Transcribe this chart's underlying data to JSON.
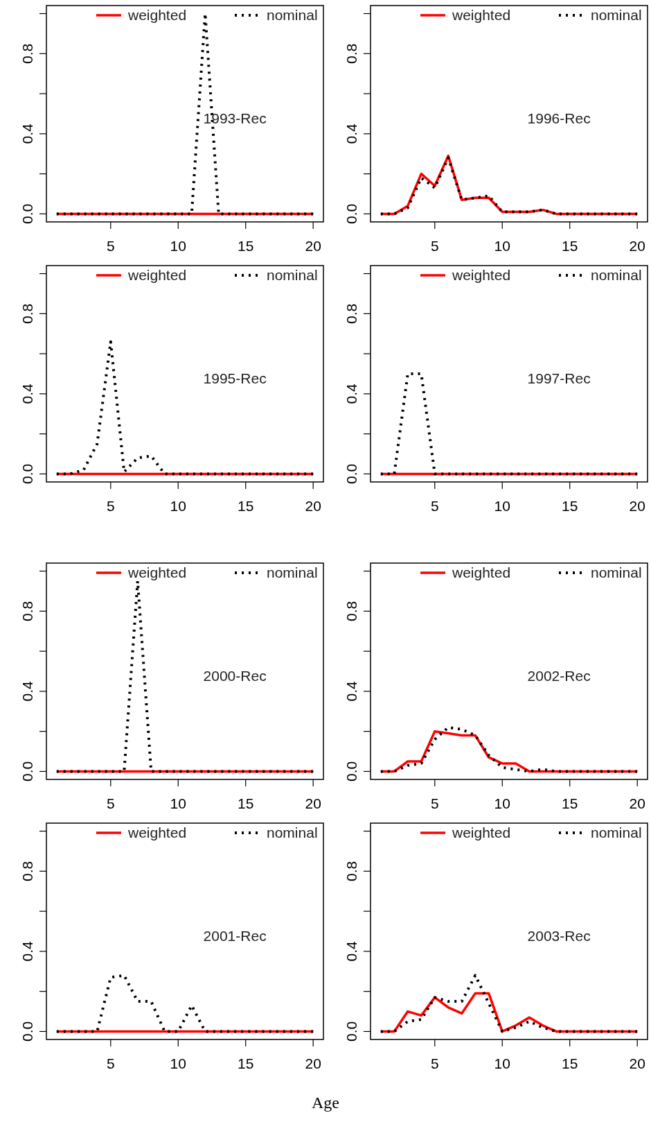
{
  "chart_data": [
    {
      "type": "line",
      "x": [
        1,
        2,
        3,
        4,
        5,
        6,
        7,
        8,
        9,
        10,
        11,
        12,
        13,
        14,
        15,
        16,
        17,
        18,
        19,
        20
      ],
      "series": [
        {
          "name": "weighted",
          "color": "#ff0000",
          "line_style": "solid",
          "values": [
            0,
            0,
            0,
            0,
            0,
            0,
            0,
            0,
            0,
            0,
            0,
            0,
            0,
            0,
            0,
            0,
            0,
            0,
            0,
            0
          ]
        },
        {
          "name": "nominal",
          "color": "#000000",
          "line_style": "dotted",
          "values": [
            0,
            0,
            0,
            0,
            0,
            0,
            0,
            0,
            0,
            0,
            0,
            1.0,
            0,
            0,
            0,
            0,
            0,
            0,
            0,
            0
          ]
        }
      ],
      "annotations": [
        "1993-Rec"
      ],
      "xlim": [
        0.24,
        20.76
      ],
      "xticks": [
        5,
        10,
        15,
        20
      ],
      "ylim": [
        -0.04,
        1.04
      ],
      "yticks": [
        {
          "value": 0,
          "label": "0.0"
        },
        {
          "value": 0.2,
          "label": null
        },
        {
          "value": 0.4,
          "label": "0.4"
        },
        {
          "value": 0.6,
          "label": null
        },
        {
          "value": 0.8,
          "label": "0.8"
        },
        {
          "value": 1,
          "label": null
        }
      ],
      "legend": "top",
      "grid": false
    },
    {
      "type": "line",
      "x": [
        1,
        2,
        3,
        4,
        5,
        6,
        7,
        8,
        9,
        10,
        11,
        12,
        13,
        14,
        15,
        16,
        17,
        18,
        19,
        20
      ],
      "series": [
        {
          "name": "weighted",
          "color": "#ff0000",
          "line_style": "solid",
          "values": [
            0,
            0,
            0.04,
            0.2,
            0.14,
            0.29,
            0.07,
            0.08,
            0.08,
            0.01,
            0.01,
            0.01,
            0.02,
            0,
            0,
            0,
            0,
            0,
            0,
            0
          ]
        },
        {
          "name": "nominal",
          "color": "#000000",
          "line_style": "dotted",
          "values": [
            0,
            0,
            0.03,
            0.18,
            0.13,
            0.28,
            0.07,
            0.08,
            0.09,
            0.01,
            0.01,
            0.01,
            0.02,
            0,
            0,
            0,
            0,
            0,
            0,
            0
          ]
        }
      ],
      "annotations": [
        "1996-Rec"
      ],
      "xlim": [
        0.24,
        20.76
      ],
      "xticks": [
        5,
        10,
        15,
        20
      ],
      "ylim": [
        -0.04,
        1.04
      ],
      "yticks": [
        {
          "value": 0,
          "label": "0.0"
        },
        {
          "value": 0.2,
          "label": null
        },
        {
          "value": 0.4,
          "label": "0.4"
        },
        {
          "value": 0.6,
          "label": null
        },
        {
          "value": 0.8,
          "label": "0.8"
        },
        {
          "value": 1,
          "label": null
        }
      ],
      "legend": "top",
      "grid": false
    },
    {
      "type": "line",
      "x": [
        1,
        2,
        3,
        4,
        5,
        6,
        7,
        8,
        9,
        10,
        11,
        12,
        13,
        14,
        15,
        16,
        17,
        18,
        19,
        20
      ],
      "series": [
        {
          "name": "weighted",
          "color": "#ff0000",
          "line_style": "solid",
          "values": [
            0,
            0,
            0,
            0,
            0,
            0,
            0,
            0,
            0,
            0,
            0,
            0,
            0,
            0,
            0,
            0,
            0,
            0,
            0,
            0
          ]
        },
        {
          "name": "nominal",
          "color": "#000000",
          "line_style": "dotted",
          "values": [
            0,
            0,
            0.02,
            0.15,
            0.66,
            0.01,
            0.08,
            0.09,
            0,
            0,
            0,
            0,
            0,
            0,
            0,
            0,
            0,
            0,
            0,
            0
          ]
        }
      ],
      "annotations": [
        "1995-Rec"
      ],
      "xlim": [
        0.24,
        20.76
      ],
      "xticks": [
        5,
        10,
        15,
        20
      ],
      "ylim": [
        -0.04,
        1.04
      ],
      "yticks": [
        {
          "value": 0,
          "label": "0.0"
        },
        {
          "value": 0.2,
          "label": null
        },
        {
          "value": 0.4,
          "label": "0.4"
        },
        {
          "value": 0.6,
          "label": null
        },
        {
          "value": 0.8,
          "label": "0.8"
        },
        {
          "value": 1,
          "label": null
        }
      ],
      "legend": "top",
      "grid": false
    },
    {
      "type": "line",
      "x": [
        1,
        2,
        3,
        4,
        5,
        6,
        7,
        8,
        9,
        10,
        11,
        12,
        13,
        14,
        15,
        16,
        17,
        18,
        19,
        20
      ],
      "series": [
        {
          "name": "weighted",
          "color": "#ff0000",
          "line_style": "solid",
          "values": [
            0,
            0,
            0,
            0,
            0,
            0,
            0,
            0,
            0,
            0,
            0,
            0,
            0,
            0,
            0,
            0,
            0,
            0,
            0,
            0
          ]
        },
        {
          "name": "nominal",
          "color": "#000000",
          "line_style": "dotted",
          "values": [
            0,
            0,
            0.5,
            0.5,
            0,
            0,
            0,
            0,
            0,
            0,
            0,
            0,
            0,
            0,
            0,
            0,
            0,
            0,
            0,
            0
          ]
        }
      ],
      "annotations": [
        "1997-Rec"
      ],
      "xlim": [
        0.24,
        20.76
      ],
      "xticks": [
        5,
        10,
        15,
        20
      ],
      "ylim": [
        -0.04,
        1.04
      ],
      "yticks": [
        {
          "value": 0,
          "label": "0.0"
        },
        {
          "value": 0.2,
          "label": null
        },
        {
          "value": 0.4,
          "label": "0.4"
        },
        {
          "value": 0.6,
          "label": null
        },
        {
          "value": 0.8,
          "label": "0.8"
        },
        {
          "value": 1,
          "label": null
        }
      ],
      "legend": "top",
      "grid": false
    },
    {
      "type": "line",
      "x": [
        1,
        2,
        3,
        4,
        5,
        6,
        7,
        8,
        9,
        10,
        11,
        12,
        13,
        14,
        15,
        16,
        17,
        18,
        19,
        20
      ],
      "series": [
        {
          "name": "weighted",
          "color": "#ff0000",
          "line_style": "solid",
          "values": [
            0,
            0,
            0,
            0,
            0,
            0,
            0,
            0,
            0,
            0,
            0,
            0,
            0,
            0,
            0,
            0,
            0,
            0,
            0,
            0
          ]
        },
        {
          "name": "nominal",
          "color": "#000000",
          "line_style": "dotted",
          "values": [
            0,
            0,
            0,
            0,
            0,
            0,
            0.95,
            0,
            0,
            0,
            0,
            0,
            0,
            0,
            0,
            0,
            0,
            0,
            0,
            0
          ]
        }
      ],
      "annotations": [
        "2000-Rec"
      ],
      "xlim": [
        0.24,
        20.76
      ],
      "xticks": [
        5,
        10,
        15,
        20
      ],
      "ylim": [
        -0.04,
        1.04
      ],
      "yticks": [
        {
          "value": 0,
          "label": "0.0"
        },
        {
          "value": 0.2,
          "label": null
        },
        {
          "value": 0.4,
          "label": "0.4"
        },
        {
          "value": 0.6,
          "label": null
        },
        {
          "value": 0.8,
          "label": "0.8"
        },
        {
          "value": 1,
          "label": null
        }
      ],
      "legend": "top",
      "grid": false
    },
    {
      "type": "line",
      "x": [
        1,
        2,
        3,
        4,
        5,
        6,
        7,
        8,
        9,
        10,
        11,
        12,
        13,
        14,
        15,
        16,
        17,
        18,
        19,
        20
      ],
      "series": [
        {
          "name": "weighted",
          "color": "#ff0000",
          "line_style": "solid",
          "values": [
            0,
            0,
            0.05,
            0.05,
            0.2,
            0.19,
            0.18,
            0.18,
            0.07,
            0.04,
            0.04,
            0,
            0,
            0,
            0,
            0,
            0,
            0,
            0,
            0
          ]
        },
        {
          "name": "nominal",
          "color": "#000000",
          "line_style": "dotted",
          "values": [
            0,
            0,
            0.03,
            0.04,
            0.16,
            0.22,
            0.21,
            0.18,
            0.08,
            0.02,
            0.01,
            0,
            0.01,
            0,
            0,
            0,
            0,
            0,
            0,
            0
          ]
        }
      ],
      "annotations": [
        "2002-Rec"
      ],
      "xlim": [
        0.24,
        20.76
      ],
      "xticks": [
        5,
        10,
        15,
        20
      ],
      "ylim": [
        -0.04,
        1.04
      ],
      "yticks": [
        {
          "value": 0,
          "label": "0.0"
        },
        {
          "value": 0.2,
          "label": null
        },
        {
          "value": 0.4,
          "label": "0.4"
        },
        {
          "value": 0.6,
          "label": null
        },
        {
          "value": 0.8,
          "label": "0.8"
        },
        {
          "value": 1,
          "label": null
        }
      ],
      "legend": "top",
      "grid": false
    },
    {
      "type": "line",
      "x": [
        1,
        2,
        3,
        4,
        5,
        6,
        7,
        8,
        9,
        10,
        11,
        12,
        13,
        14,
        15,
        16,
        17,
        18,
        19,
        20
      ],
      "series": [
        {
          "name": "weighted",
          "color": "#ff0000",
          "line_style": "solid",
          "values": [
            0,
            0,
            0,
            0,
            0,
            0,
            0,
            0,
            0,
            0,
            0,
            0,
            0,
            0,
            0,
            0,
            0,
            0,
            0,
            0
          ]
        },
        {
          "name": "nominal",
          "color": "#000000",
          "line_style": "dotted",
          "values": [
            0,
            0,
            0,
            0,
            0.27,
            0.28,
            0.15,
            0.15,
            0,
            0,
            0.13,
            0,
            0,
            0,
            0,
            0,
            0,
            0,
            0,
            0
          ]
        }
      ],
      "annotations": [
        "2001-Rec"
      ],
      "xlabel": "Age",
      "xlim": [
        0.24,
        20.76
      ],
      "xticks": [
        5,
        10,
        15,
        20
      ],
      "ylim": [
        -0.04,
        1.04
      ],
      "yticks": [
        {
          "value": 0,
          "label": "0.0"
        },
        {
          "value": 0.2,
          "label": null
        },
        {
          "value": 0.4,
          "label": "0.4"
        },
        {
          "value": 0.6,
          "label": null
        },
        {
          "value": 0.8,
          "label": "0.8"
        },
        {
          "value": 1,
          "label": null
        }
      ],
      "legend": "top",
      "grid": false
    },
    {
      "type": "line",
      "x": [
        1,
        2,
        3,
        4,
        5,
        6,
        7,
        8,
        9,
        10,
        11,
        12,
        13,
        14,
        15,
        16,
        17,
        18,
        19,
        20
      ],
      "series": [
        {
          "name": "weighted",
          "color": "#ff0000",
          "line_style": "solid",
          "values": [
            0,
            0,
            0.1,
            0.08,
            0.17,
            0.12,
            0.09,
            0.19,
            0.19,
            0,
            0.03,
            0.07,
            0.03,
            0,
            0,
            0,
            0,
            0,
            0,
            0
          ]
        },
        {
          "name": "nominal",
          "color": "#000000",
          "line_style": "dotted",
          "values": [
            0,
            0,
            0.05,
            0.06,
            0.17,
            0.15,
            0.15,
            0.28,
            0.14,
            0,
            0.02,
            0.05,
            0.02,
            0,
            0,
            0,
            0,
            0,
            0,
            0
          ]
        }
      ],
      "annotations": [
        "2003-Rec"
      ],
      "xlim": [
        0.24,
        20.76
      ],
      "xticks": [
        5,
        10,
        15,
        20
      ],
      "ylim": [
        -0.04,
        1.04
      ],
      "yticks": [
        {
          "value": 0,
          "label": "0.0"
        },
        {
          "value": 0.2,
          "label": null
        },
        {
          "value": 0.4,
          "label": "0.4"
        },
        {
          "value": 0.6,
          "label": null
        },
        {
          "value": 0.8,
          "label": "0.8"
        },
        {
          "value": 1,
          "label": null
        }
      ],
      "legend": "top",
      "grid": false
    }
  ]
}
